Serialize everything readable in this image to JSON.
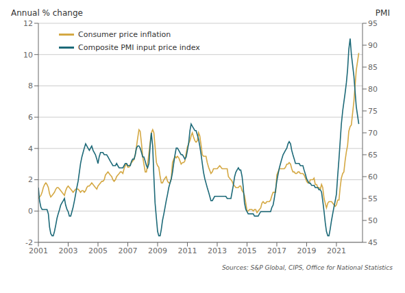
{
  "chart_data": {
    "type": "line",
    "y_label": "Annual % change",
    "y2_label": "PMI",
    "source": "Sources: S&P Global, CIPS, Office for National Statistics",
    "grid": true,
    "legend": "upper left",
    "xlim": [
      2001,
      2022.75
    ],
    "xticks": [
      2001,
      2003,
      2005,
      2007,
      2009,
      2011,
      2013,
      2015,
      2017,
      2019,
      2021
    ],
    "ylim": [
      -2,
      12
    ],
    "yticks": [
      -2,
      0,
      2,
      4,
      6,
      8,
      10,
      12
    ],
    "y2lim": [
      45,
      95
    ],
    "y2ticks": [
      45,
      50,
      55,
      60,
      65,
      70,
      75,
      80,
      85,
      90,
      95
    ],
    "x": [
      2001.0,
      2001.08,
      2001.17,
      2001.25,
      2001.33,
      2001.42,
      2001.5,
      2001.58,
      2001.67,
      2001.75,
      2001.83,
      2001.92,
      2002.0,
      2002.08,
      2002.17,
      2002.25,
      2002.33,
      2002.42,
      2002.5,
      2002.58,
      2002.67,
      2002.75,
      2002.83,
      2002.92,
      2003.0,
      2003.08,
      2003.17,
      2003.25,
      2003.33,
      2003.42,
      2003.5,
      2003.58,
      2003.67,
      2003.75,
      2003.83,
      2003.92,
      2004.0,
      2004.08,
      2004.17,
      2004.25,
      2004.33,
      2004.42,
      2004.5,
      2004.58,
      2004.67,
      2004.75,
      2004.83,
      2004.92,
      2005.0,
      2005.08,
      2005.17,
      2005.25,
      2005.33,
      2005.42,
      2005.5,
      2005.58,
      2005.67,
      2005.75,
      2005.83,
      2005.92,
      2006.0,
      2006.08,
      2006.17,
      2006.25,
      2006.33,
      2006.42,
      2006.5,
      2006.58,
      2006.67,
      2006.75,
      2006.83,
      2006.92,
      2007.0,
      2007.08,
      2007.17,
      2007.25,
      2007.33,
      2007.42,
      2007.5,
      2007.58,
      2007.67,
      2007.75,
      2007.83,
      2007.92,
      2008.0,
      2008.08,
      2008.17,
      2008.25,
      2008.33,
      2008.42,
      2008.5,
      2008.58,
      2008.67,
      2008.75,
      2008.83,
      2008.92,
      2009.0,
      2009.08,
      2009.17,
      2009.25,
      2009.33,
      2009.42,
      2009.5,
      2009.58,
      2009.67,
      2009.75,
      2009.83,
      2009.92,
      2010.0,
      2010.08,
      2010.17,
      2010.25,
      2010.33,
      2010.42,
      2010.5,
      2010.58,
      2010.67,
      2010.75,
      2010.83,
      2010.92,
      2011.0,
      2011.08,
      2011.17,
      2011.25,
      2011.33,
      2011.42,
      2011.5,
      2011.58,
      2011.67,
      2011.75,
      2011.83,
      2011.92,
      2012.0,
      2012.08,
      2012.17,
      2012.25,
      2012.33,
      2012.42,
      2012.5,
      2012.58,
      2012.67,
      2012.75,
      2012.83,
      2012.92,
      2013.0,
      2013.08,
      2013.17,
      2013.25,
      2013.33,
      2013.42,
      2013.5,
      2013.58,
      2013.67,
      2013.75,
      2013.83,
      2013.92,
      2014.0,
      2014.08,
      2014.17,
      2014.25,
      2014.33,
      2014.42,
      2014.5,
      2014.58,
      2014.67,
      2014.75,
      2014.83,
      2014.92,
      2015.0,
      2015.08,
      2015.17,
      2015.25,
      2015.33,
      2015.42,
      2015.5,
      2015.58,
      2015.67,
      2015.75,
      2015.83,
      2015.92,
      2016.0,
      2016.08,
      2016.17,
      2016.25,
      2016.33,
      2016.42,
      2016.5,
      2016.58,
      2016.67,
      2016.75,
      2016.83,
      2016.92,
      2017.0,
      2017.08,
      2017.17,
      2017.25,
      2017.33,
      2017.42,
      2017.5,
      2017.58,
      2017.67,
      2017.75,
      2017.83,
      2017.92,
      2018.0,
      2018.08,
      2018.17,
      2018.25,
      2018.33,
      2018.42,
      2018.5,
      2018.58,
      2018.67,
      2018.75,
      2018.83,
      2018.92,
      2019.0,
      2019.08,
      2019.17,
      2019.25,
      2019.33,
      2019.42,
      2019.5,
      2019.58,
      2019.67,
      2019.75,
      2019.83,
      2019.92,
      2020.0,
      2020.08,
      2020.17,
      2020.25,
      2020.33,
      2020.42,
      2020.5,
      2020.58,
      2020.67,
      2020.75,
      2020.83,
      2020.92,
      2021.0,
      2021.08,
      2021.17,
      2021.25,
      2021.33,
      2021.42,
      2021.5,
      2021.58,
      2021.67,
      2021.75,
      2021.83,
      2021.92,
      2022.0,
      2022.17,
      2022.33,
      2022.5
    ],
    "series": [
      {
        "name": "Consumer price inflation",
        "color": "#D4A843",
        "values": [
          0.8,
          0.9,
          1.0,
          1.2,
          1.5,
          1.7,
          1.8,
          1.7,
          1.5,
          1.1,
          0.9,
          1.0,
          1.1,
          1.2,
          1.4,
          1.5,
          1.5,
          1.4,
          1.3,
          1.2,
          1.1,
          1.0,
          1.3,
          1.5,
          1.6,
          1.5,
          1.4,
          1.3,
          1.2,
          1.3,
          1.4,
          1.4,
          1.4,
          1.3,
          1.2,
          1.3,
          1.3,
          1.2,
          1.3,
          1.5,
          1.6,
          1.6,
          1.7,
          1.8,
          1.7,
          1.6,
          1.5,
          1.4,
          1.6,
          1.7,
          1.8,
          1.9,
          1.9,
          2.0,
          2.3,
          2.4,
          2.5,
          2.4,
          2.3,
          2.2,
          2.0,
          1.9,
          2.0,
          2.2,
          2.3,
          2.4,
          2.5,
          2.5,
          2.4,
          2.7,
          2.9,
          3.0,
          2.8,
          2.8,
          3.0,
          3.1,
          3.2,
          3.3,
          3.6,
          4.1,
          4.7,
          5.2,
          5.1,
          4.3,
          3.5,
          3.0,
          2.5,
          2.5,
          3.0,
          3.7,
          4.4,
          5.0,
          5.2,
          5.0,
          4.1,
          3.1,
          2.9,
          2.8,
          2.2,
          1.8,
          1.8,
          2.0,
          2.1,
          2.2,
          1.9,
          1.8,
          1.8,
          2.1,
          3.1,
          3.3,
          3.5,
          3.4,
          3.5,
          3.4,
          3.2,
          3.0,
          3.1,
          3.1,
          3.2,
          3.7,
          4.1,
          4.3,
          4.5,
          4.8,
          5.0,
          4.7,
          4.5,
          4.4,
          4.5,
          5.0,
          4.8,
          4.2,
          3.6,
          3.5,
          3.5,
          3.5,
          3.1,
          2.8,
          2.6,
          2.4,
          2.5,
          2.7,
          2.7,
          2.7,
          2.7,
          2.8,
          2.9,
          2.8,
          2.7,
          2.7,
          2.7,
          2.7,
          2.7,
          2.2,
          2.1,
          2.0,
          1.9,
          1.7,
          1.6,
          1.5,
          1.5,
          1.5,
          1.6,
          1.6,
          1.3,
          1.2,
          1.0,
          0.5,
          0.0,
          0.0,
          0.1,
          0.1,
          0.1,
          0.0,
          0.1,
          0.1,
          -0.1,
          0.0,
          0.1,
          0.2,
          0.5,
          0.6,
          0.5,
          0.5,
          0.6,
          0.6,
          0.6,
          0.7,
          1.0,
          1.2,
          1.2,
          1.2,
          2.3,
          2.5,
          2.7,
          2.7,
          2.7,
          2.7,
          2.7,
          2.8,
          3.0,
          3.0,
          3.1,
          3.0,
          2.7,
          2.5,
          2.5,
          2.4,
          2.4,
          2.5,
          2.5,
          2.4,
          2.4,
          2.4,
          2.3,
          2.1,
          1.9,
          1.8,
          1.8,
          2.0,
          2.0,
          2.0,
          2.1,
          1.7,
          1.7,
          1.5,
          1.5,
          1.4,
          1.7,
          1.5,
          0.8,
          0.5,
          0.2,
          0.5,
          0.6,
          0.6,
          0.6,
          0.5,
          0.4,
          0.3,
          0.4,
          0.7,
          0.7,
          1.5,
          2.1,
          2.4,
          2.5,
          3.2,
          3.8,
          4.2,
          5.1,
          5.4,
          5.5,
          7.0,
          9.0,
          10.1
        ]
      },
      {
        "name": "Composite PMI input price index",
        "color": "#1C6978",
        "axis": "y2",
        "values": [
          57.5,
          54.5,
          53.0,
          52.5,
          52.5,
          52.5,
          52.5,
          52.5,
          51.5,
          48.5,
          47.0,
          46.5,
          46.5,
          47.5,
          49.0,
          50.5,
          51.5,
          52.5,
          53.5,
          54.0,
          54.5,
          55.0,
          53.5,
          52.5,
          52.0,
          51.0,
          51.0,
          52.0,
          53.0,
          54.5,
          56.0,
          57.5,
          59.0,
          61.0,
          63.0,
          64.5,
          65.5,
          66.5,
          67.5,
          67.0,
          66.5,
          66.0,
          66.5,
          67.0,
          66.0,
          65.5,
          65.0,
          64.0,
          63.0,
          64.5,
          65.5,
          65.5,
          65.5,
          65.0,
          65.0,
          65.0,
          64.5,
          64.0,
          63.5,
          63.0,
          62.5,
          62.5,
          62.5,
          63.0,
          62.5,
          62.0,
          62.0,
          62.0,
          62.0,
          62.5,
          63.0,
          63.0,
          62.5,
          62.5,
          62.5,
          63.5,
          64.0,
          64.0,
          65.0,
          66.5,
          67.0,
          67.0,
          66.5,
          65.5,
          64.5,
          64.5,
          63.5,
          62.5,
          62.0,
          63.0,
          67.0,
          70.0,
          67.0,
          60.0,
          54.0,
          50.5,
          47.5,
          46.5,
          46.5,
          48.0,
          50.0,
          51.5,
          53.0,
          54.5,
          56.0,
          57.5,
          58.5,
          59.5,
          61.0,
          63.0,
          65.0,
          66.5,
          66.5,
          66.0,
          65.5,
          65.0,
          65.0,
          64.5,
          64.0,
          64.5,
          66.0,
          67.5,
          70.5,
          72.0,
          71.5,
          71.0,
          70.5,
          70.5,
          69.5,
          68.5,
          67.0,
          65.0,
          63.0,
          61.0,
          59.5,
          58.5,
          57.5,
          56.5,
          55.5,
          54.5,
          54.5,
          55.0,
          55.5,
          55.5,
          55.5,
          55.5,
          55.5,
          55.5,
          55.5,
          55.5,
          55.5,
          55.5,
          55.0,
          55.0,
          55.0,
          55.0,
          56.5,
          58.0,
          60.0,
          61.0,
          61.5,
          62.0,
          61.5,
          61.5,
          60.0,
          57.5,
          54.0,
          52.5,
          52.0,
          51.5,
          51.5,
          51.5,
          51.5,
          51.5,
          51.0,
          51.0,
          51.0,
          51.0,
          51.5,
          52.0,
          52.0,
          52.0,
          52.0,
          52.0,
          52.0,
          52.0,
          52.0,
          52.0,
          53.0,
          53.5,
          55.0,
          57.0,
          59.0,
          60.5,
          62.0,
          63.0,
          64.0,
          65.0,
          65.5,
          66.0,
          66.5,
          67.5,
          68.0,
          67.5,
          66.0,
          65.0,
          64.0,
          63.0,
          63.0,
          63.0,
          63.0,
          62.5,
          62.5,
          62.5,
          61.5,
          60.5,
          59.5,
          59.0,
          58.5,
          58.5,
          58.0,
          58.0,
          58.0,
          57.5,
          57.5,
          57.5,
          57.0,
          57.0,
          56.5,
          54.5,
          52.0,
          49.5,
          47.5,
          46.5,
          46.5,
          48.0,
          50.0,
          51.5,
          53.0,
          54.5,
          56.0,
          60.0,
          64.0,
          68.0,
          72.0,
          75.0,
          77.0,
          79.0,
          81.5,
          84.5,
          89.0,
          91.5,
          88.0,
          83.0,
          76.0,
          72.0
        ]
      }
    ]
  }
}
